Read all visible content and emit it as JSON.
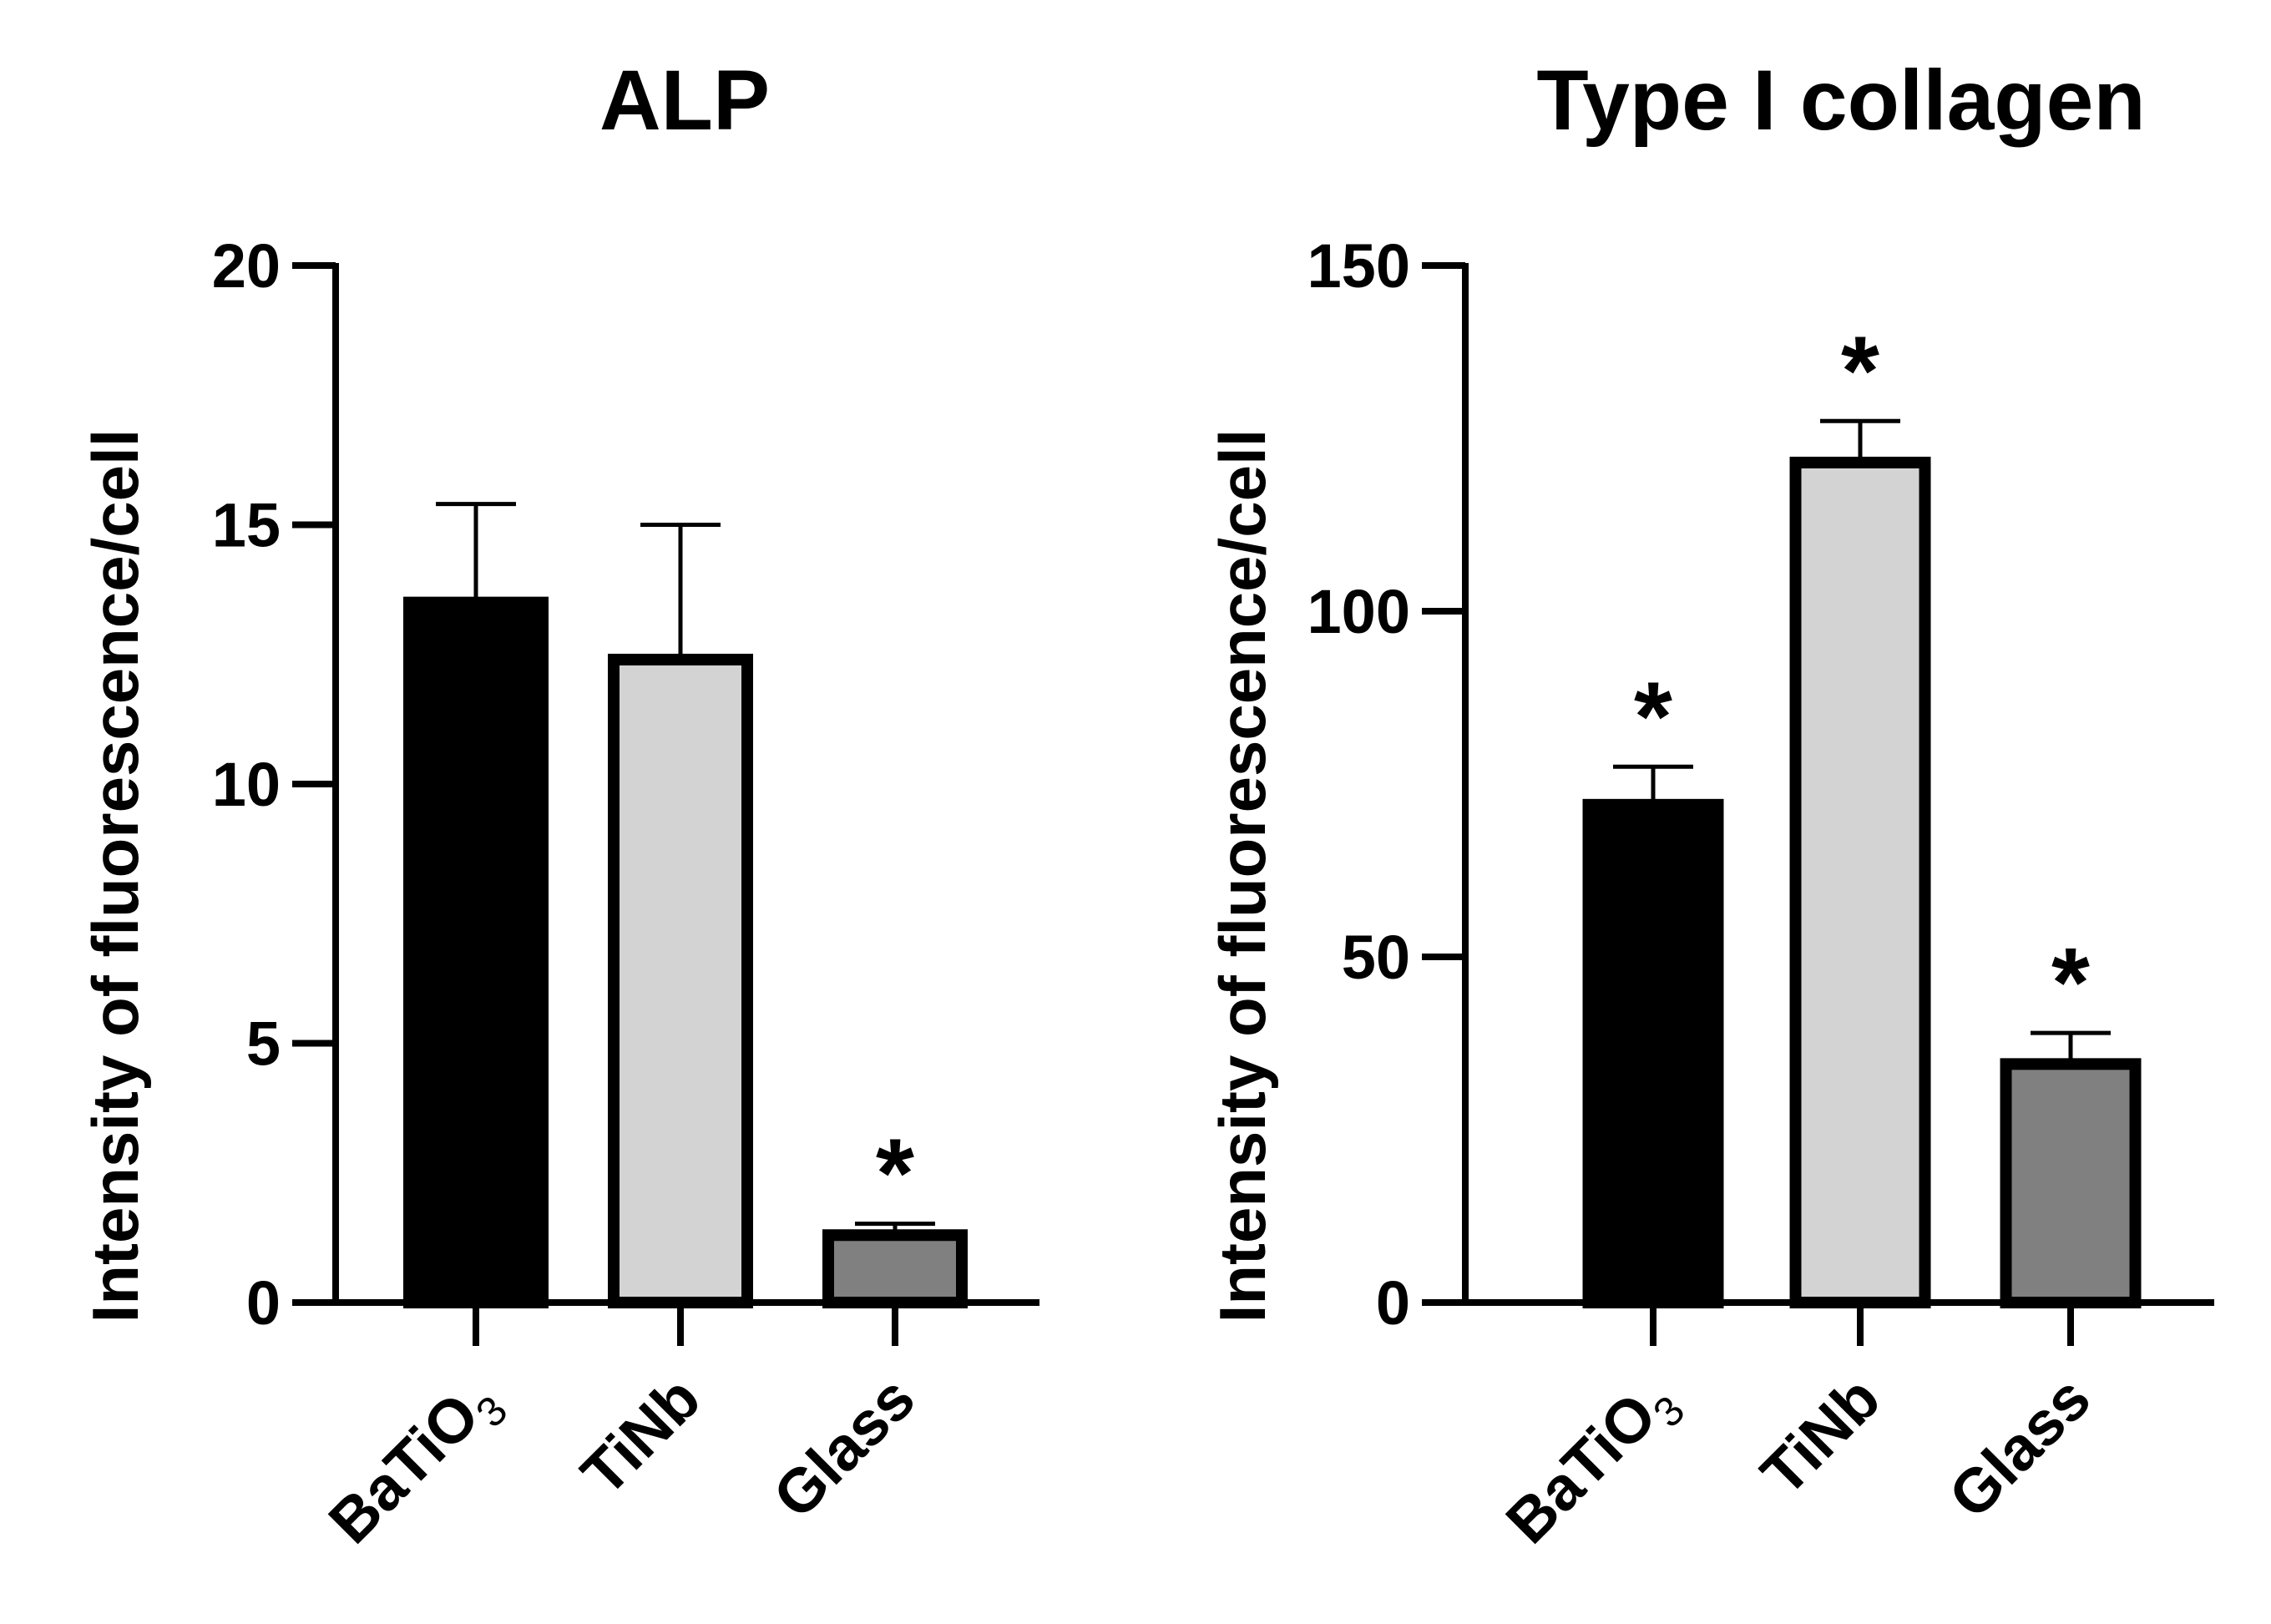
{
  "chart_data": [
    {
      "type": "bar",
      "title": "ALP",
      "xlabel": "",
      "ylabel": "Intensity of fluorescence/cell",
      "ylim": [
        0,
        20
      ],
      "yticks": [
        0,
        5,
        10,
        15,
        20
      ],
      "categories": [
        {
          "main": "BaTiO",
          "sub": "3"
        },
        {
          "main": "TiNb",
          "sub": ""
        },
        {
          "main": "Glass",
          "sub": ""
        }
      ],
      "values": [
        13.5,
        12.4,
        1.3
      ],
      "errors": [
        1.9,
        2.6,
        0.22
      ],
      "colors": [
        "#000000",
        "#d3d3d3",
        "#808080"
      ],
      "significance": [
        "",
        "",
        "*"
      ],
      "grid": false
    },
    {
      "type": "bar",
      "title": "Type I collagen",
      "xlabel": "",
      "ylabel": "Intensity of fluorescence/cell",
      "ylim": [
        0,
        150
      ],
      "yticks": [
        0,
        50,
        100,
        150
      ],
      "categories": [
        {
          "main": "BaTiO",
          "sub": "3"
        },
        {
          "main": "TiNb",
          "sub": ""
        },
        {
          "main": "Glass",
          "sub": ""
        }
      ],
      "values": [
        72,
        121.5,
        34.5
      ],
      "errors": [
        5.5,
        6.0,
        4.5
      ],
      "colors": [
        "#000000",
        "#d3d3d3",
        "#808080"
      ],
      "significance": [
        "*",
        "*",
        "*"
      ],
      "grid": false
    }
  ]
}
